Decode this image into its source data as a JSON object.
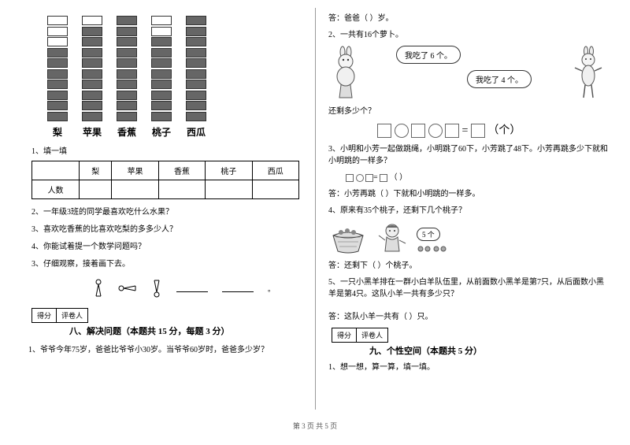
{
  "left": {
    "chart": {
      "type": "bar",
      "fruits": [
        "梨",
        "苹果",
        "香蕉",
        "桃子",
        "西瓜"
      ],
      "total_rows": 10,
      "filled": [
        7,
        9,
        10,
        8,
        10
      ],
      "block_filled_color": "#666666",
      "block_empty_color": "#ffffff",
      "block_border_color": "#333333"
    },
    "q1_label": "1、填一填",
    "table": {
      "row_header": "人数",
      "columns": [
        "梨",
        "苹果",
        "香蕉",
        "桃子",
        "西瓜"
      ]
    },
    "q2": "2、一年级3班的同学最喜欢吃什么水果？",
    "q3": "3、喜欢吃香蕉的比喜欢吃梨的多多少人？",
    "q4": "4、你能试着提一个数学问题吗？",
    "q5": "3、仔细观察，接着画下去。",
    "score": {
      "left": "得分",
      "right": "评卷人"
    },
    "section8": "八、解决问题（本题共 15 分，每题 3 分）",
    "q8_1": "1、爷爷今年75岁，爸爸比爷爷小30岁。当爷爷60岁时，爸爸多少岁？"
  },
  "right": {
    "ans1": "答：爸爸（   ）岁。",
    "q2_label": "2、一共有16个萝卜。",
    "bubble1": "我吃了 6 个。",
    "bubble2": "我吃了 4 个。",
    "q2_remain": "还剩多少个？",
    "eq_suffix": "（个）",
    "q3": "3、小明和小芳一起做跳绳，小明跳了60下，小芳跳了48下。小芳再跳多少下就和小明跳的一样多？",
    "q3_blank": "（   ）",
    "ans3": "答：小芳再跳（   ）下就和小明跳的一样多。",
    "q4": "4、原来有35个桃子，还剩下几个桃子？",
    "bubble3": "5 个",
    "ans4": "答：还剩下（   ）个桃子。",
    "q5": "5、一只小黑羊排在一群小白羊队伍里，从前面数小黑羊是第7只，从后面数小黑羊是第4只。这队小羊一共有多少只？",
    "ans5": "答：这队小羊一共有（   ）只。",
    "score": {
      "left": "得分",
      "right": "评卷人"
    },
    "section9": "九、个性空间（本题共 5 分）",
    "q9_1": "1、想一想，算一算，填一填。"
  },
  "footer": "第 3 页  共 5 页",
  "colors": {
    "text": "#000000",
    "bg": "#ffffff",
    "border": "#000000",
    "divider": "#999999"
  }
}
